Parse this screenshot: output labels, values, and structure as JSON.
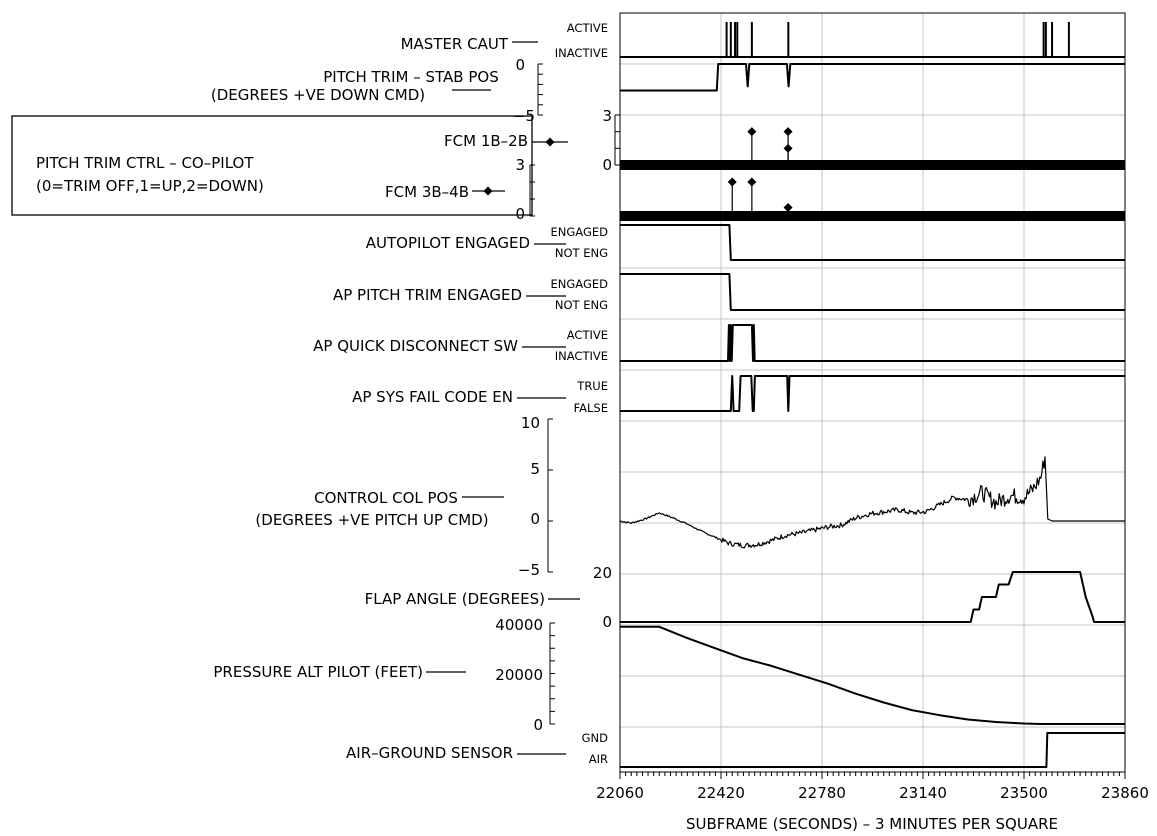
{
  "chart_data": {
    "type": "line",
    "xlabel": "SUBFRAME (SECONDS) – 3 MINUTES PER SQUARE",
    "x_ticks": [
      22060,
      22420,
      22780,
      23140,
      23500,
      23860
    ],
    "xlim": [
      22060,
      23860
    ],
    "parameters": [
      {
        "id": "master_caut",
        "label": "MASTER CAUT",
        "states": [
          "ACTIVE",
          "INACTIVE"
        ],
        "pulses": [
          22440,
          22455,
          22470,
          22478,
          22530,
          22660,
          23570,
          23578,
          23600,
          23660
        ]
      },
      {
        "id": "pitch_trim_stab",
        "label_lines": [
          "PITCH TRIM – STAB POS",
          "(DEGREES +VE DOWN CMD)"
        ],
        "y_ticks": [
          "0",
          "−5"
        ],
        "ylim": [
          -5,
          0
        ],
        "points": [
          [
            22060,
            -2.6
          ],
          [
            22405,
            -2.6
          ],
          [
            22410,
            0
          ],
          [
            22509,
            0
          ],
          [
            22515,
            -2.2
          ],
          [
            22521,
            0
          ],
          [
            22655,
            0
          ],
          [
            22661,
            -2.2
          ],
          [
            22667,
            0
          ],
          [
            23860,
            0
          ]
        ]
      },
      {
        "id": "pitch_trim_ctrl",
        "box_lines": [
          "PITCH TRIM CTRL – CO–PILOT",
          "(0=TRIM OFF,1=UP,2=DOWN)"
        ],
        "subplots": [
          {
            "label": "FCM 1B–2B",
            "y_ticks": [
              "3",
              "0"
            ],
            "ylim": [
              0,
              3
            ],
            "markers": [
              [
                22530,
                2
              ],
              [
                22659,
                2
              ],
              [
                22659,
                1
              ]
            ]
          },
          {
            "label": "FCM 3B–4B",
            "y_ticks": [
              "3",
              "0"
            ],
            "ylim": [
              0,
              3
            ],
            "markers": [
              [
                22460,
                2
              ],
              [
                22530,
                2
              ],
              [
                22659,
                0.5
              ]
            ]
          }
        ]
      },
      {
        "id": "autopilot_engaged",
        "label": "AUTOPILOT ENGAGED",
        "states": [
          "ENGAGED",
          "NOT ENG"
        ],
        "transitions": [
          [
            22060,
            1
          ],
          [
            22450,
            1
          ],
          [
            22455,
            0
          ],
          [
            23860,
            0
          ]
        ]
      },
      {
        "id": "ap_pitch_trim_engaged",
        "label": "AP PITCH TRIM ENGAGED",
        "states": [
          "ENGAGED",
          "NOT ENG"
        ],
        "transitions": [
          [
            22060,
            1
          ],
          [
            22450,
            1
          ],
          [
            22455,
            0
          ],
          [
            23860,
            0
          ]
        ]
      },
      {
        "id": "ap_quick_disconnect",
        "label": "AP QUICK DISCONNECT SW",
        "states": [
          "ACTIVE",
          "INACTIVE"
        ],
        "transitions": [
          [
            22060,
            0
          ],
          [
            22445,
            0
          ],
          [
            22448,
            1
          ],
          [
            22452,
            0
          ],
          [
            22455,
            1
          ],
          [
            22458,
            0
          ],
          [
            22462,
            1
          ],
          [
            22530,
            1
          ],
          [
            22534,
            0
          ],
          [
            22537,
            1
          ],
          [
            22540,
            0
          ],
          [
            23860,
            0
          ]
        ]
      },
      {
        "id": "ap_sys_fail_code",
        "label": "AP SYS FAIL CODE EN",
        "states": [
          "TRUE",
          "FALSE"
        ],
        "transitions": [
          [
            22060,
            0
          ],
          [
            22455,
            0
          ],
          [
            22460,
            1
          ],
          [
            22465,
            0
          ],
          [
            22485,
            0
          ],
          [
            22490,
            1
          ],
          [
            22528,
            1
          ],
          [
            22533,
            0
          ],
          [
            22537,
            0
          ],
          [
            22541,
            1
          ],
          [
            22656,
            1
          ],
          [
            22660,
            0
          ],
          [
            22664,
            1
          ],
          [
            23860,
            1
          ]
        ]
      },
      {
        "id": "control_col_pos",
        "label_lines": [
          "CONTROL COL POS",
          "(DEGREES +VE PITCH UP CMD)"
        ],
        "y_ticks": [
          "10",
          "5",
          "0",
          "−5"
        ],
        "ylim": [
          -5,
          10
        ],
        "points": [
          [
            22060,
            0
          ],
          [
            22100,
            -0.2
          ],
          [
            22150,
            0.2
          ],
          [
            22200,
            0.8
          ],
          [
            22250,
            0.3
          ],
          [
            22300,
            -0.3
          ],
          [
            22350,
            -1.0
          ],
          [
            22400,
            -1.6
          ],
          [
            22450,
            -2.2
          ],
          [
            22500,
            -2.4
          ],
          [
            22550,
            -2.3
          ],
          [
            22600,
            -1.9
          ],
          [
            22650,
            -1.4
          ],
          [
            22700,
            -1.2
          ],
          [
            22750,
            -0.9
          ],
          [
            22800,
            -0.6
          ],
          [
            22850,
            -0.4
          ],
          [
            22900,
            0.3
          ],
          [
            22950,
            0.7
          ],
          [
            23000,
            0.9
          ],
          [
            23050,
            1.1
          ],
          [
            23100,
            0.8
          ],
          [
            23150,
            0.9
          ],
          [
            23200,
            1.6
          ],
          [
            23250,
            2.3
          ],
          [
            23300,
            2.1
          ],
          [
            23350,
            2.8
          ],
          [
            23400,
            1.8
          ],
          [
            23450,
            2.5
          ],
          [
            23500,
            2.3
          ],
          [
            23535,
            3.2
          ],
          [
            23560,
            4.3
          ],
          [
            23575,
            6.3
          ],
          [
            23585,
            0.2
          ],
          [
            23600,
            0
          ],
          [
            23860,
            0
          ]
        ]
      },
      {
        "id": "flap_angle",
        "label": "FLAP ANGLE (DEGREES)",
        "y_ticks": [
          "20",
          "0"
        ],
        "ylim": [
          0,
          20
        ],
        "points": [
          [
            22060,
            0
          ],
          [
            23310,
            0
          ],
          [
            23320,
            5
          ],
          [
            23340,
            5
          ],
          [
            23350,
            10
          ],
          [
            23400,
            10
          ],
          [
            23410,
            15
          ],
          [
            23445,
            15
          ],
          [
            23460,
            20
          ],
          [
            23700,
            20
          ],
          [
            23720,
            10
          ],
          [
            23745,
            2
          ],
          [
            23750,
            0
          ],
          [
            23860,
            0
          ]
        ]
      },
      {
        "id": "pressure_alt",
        "label": "PRESSURE ALT PILOT (FEET)",
        "y_ticks": [
          "40000",
          "20000",
          "0"
        ],
        "ylim": [
          0,
          40000
        ],
        "points": [
          [
            22060,
            38500
          ],
          [
            22200,
            38500
          ],
          [
            22300,
            34000
          ],
          [
            22400,
            30000
          ],
          [
            22500,
            26000
          ],
          [
            22600,
            23000
          ],
          [
            22700,
            19500
          ],
          [
            22800,
            16000
          ],
          [
            22900,
            12000
          ],
          [
            23000,
            8500
          ],
          [
            23100,
            5500
          ],
          [
            23200,
            3500
          ],
          [
            23300,
            1800
          ],
          [
            23400,
            800
          ],
          [
            23500,
            200
          ],
          [
            23560,
            0
          ],
          [
            23860,
            0
          ]
        ]
      },
      {
        "id": "air_ground",
        "label": "AIR–GROUND SENSOR",
        "states": [
          "GND",
          "AIR"
        ],
        "transitions": [
          [
            22060,
            0
          ],
          [
            23580,
            0
          ],
          [
            23583,
            1
          ],
          [
            23860,
            1
          ]
        ]
      }
    ]
  }
}
